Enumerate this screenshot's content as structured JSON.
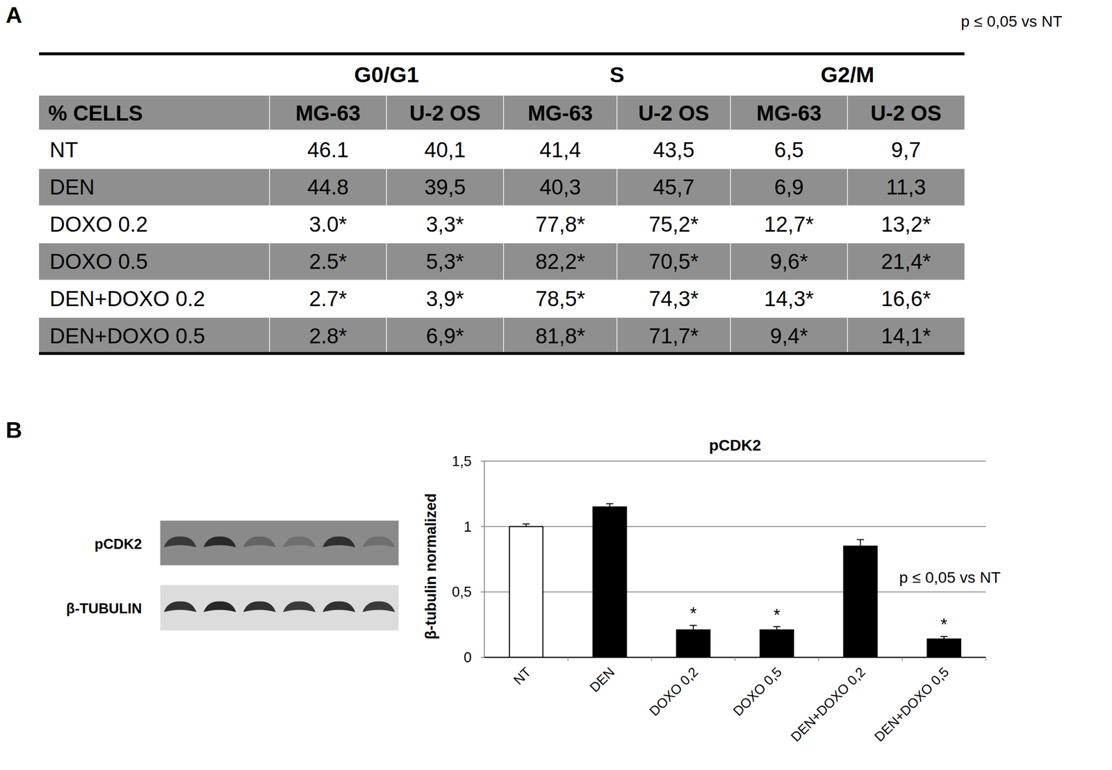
{
  "panel_a": {
    "label": "A",
    "note": "p ≤ 0,05 vs NT",
    "column_groups": [
      "G0/G1",
      "S",
      "G2/M"
    ],
    "header": [
      "% CELLS",
      "MG-63",
      "U-2 OS",
      "MG-63",
      "U-2 OS",
      "MG-63",
      "U-2 OS"
    ],
    "rows": [
      {
        "label": "NT",
        "cells": [
          "46.1",
          "40,1",
          "41,4",
          "43,5",
          "6,5",
          "9,7"
        ]
      },
      {
        "label": "DEN",
        "cells": [
          "44.8",
          "39,5",
          "40,3",
          "45,7",
          "6,9",
          "11,3"
        ]
      },
      {
        "label": "DOXO 0.2",
        "cells": [
          "3.0*",
          "3,3*",
          "77,8*",
          "75,2*",
          "12,7*",
          "13,2*"
        ]
      },
      {
        "label": "DOXO 0.5",
        "cells": [
          "2.5*",
          "5,3*",
          "82,2*",
          "70,5*",
          "9,6*",
          "21,4*"
        ]
      },
      {
        "label": "DEN+DOXO 0.2",
        "cells": [
          "2.7*",
          "3,9*",
          "78,5*",
          "74,3*",
          "14,3*",
          "16,6*"
        ]
      },
      {
        "label": "DEN+DOXO 0.5",
        "cells": [
          "2.8*",
          "6,9*",
          "81,8*",
          "71,7*",
          "9,4*",
          "14,1*"
        ]
      }
    ]
  },
  "panel_b": {
    "label": "B",
    "note": "p ≤ 0,05 vs NT",
    "blot": {
      "rows": [
        {
          "label": "pCDK2",
          "band_intensity": [
            0.75,
            0.9,
            0.35,
            0.25,
            0.85,
            0.25
          ]
        },
        {
          "label": "β-TUBULIN",
          "band_intensity": [
            0.9,
            0.95,
            0.9,
            0.85,
            0.9,
            0.85
          ]
        }
      ]
    }
  },
  "chart_data": {
    "type": "bar",
    "title": "pCDK2",
    "y_label": "β-tubulin normalized",
    "categories": [
      "NT",
      "DEN",
      "DOXO 0,2",
      "DOXO 0,5",
      "DEN+DOXO 0,2",
      "DEN+DOXO 0,5"
    ],
    "values": [
      1.0,
      1.15,
      0.21,
      0.21,
      0.85,
      0.14
    ],
    "errors": [
      0.02,
      0.025,
      0.035,
      0.025,
      0.05,
      0.02
    ],
    "significance": [
      null,
      null,
      "*",
      "*",
      null,
      "*"
    ],
    "colors": [
      "#ffffff",
      "#000000",
      "#000000",
      "#000000",
      "#000000",
      "#000000"
    ],
    "ylim": [
      0,
      1.5
    ],
    "yticks": [
      0,
      {
        "value": 0.5,
        "label": "0,5"
      },
      1,
      {
        "value": 1.5,
        "label": "1,5"
      }
    ],
    "grid": true
  }
}
